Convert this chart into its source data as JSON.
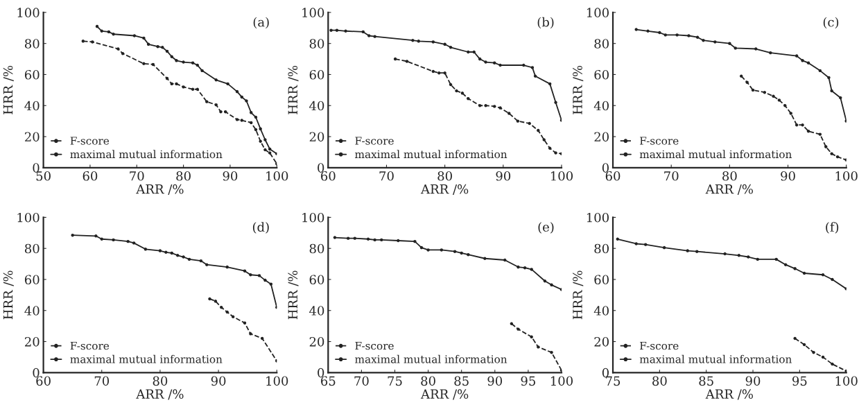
{
  "chart_data": [
    {
      "type": "line",
      "annotations": [
        "(a)"
      ],
      "xlabel": "ARR /%",
      "ylabel": "HRR /%",
      "xlim": [
        50,
        100
      ],
      "xticks": [
        50,
        60,
        70,
        80,
        90,
        100
      ],
      "ylim": [
        0,
        100
      ],
      "yticks": [
        0,
        20,
        40,
        60,
        80,
        100
      ],
      "legend": "bottom left",
      "marker": "circle",
      "grid": false,
      "series": [
        {
          "name": "F-score",
          "color": "#222222",
          "line_style": "dashed",
          "x": [
            58.5,
            60.5,
            66,
            67,
            71.5,
            73.5,
            76.5,
            77.5,
            78.5,
            80,
            82,
            83,
            85,
            87,
            88,
            89,
            91.5,
            92.5,
            94.5,
            95.5,
            96.5,
            97.5,
            98.5,
            100
          ],
          "values": [
            81.5,
            81,
            76.5,
            73.5,
            67,
            66.5,
            57.5,
            54,
            54,
            52,
            50.5,
            50.5,
            42.5,
            40.5,
            36,
            36,
            31,
            30.5,
            29,
            24.5,
            17,
            11.5,
            9.5,
            2.5
          ]
        },
        {
          "name": "maximal mutual information",
          "color": "#222222",
          "line_style": "solid",
          "x": [
            61.5,
            62.5,
            64,
            65,
            69.5,
            71.5,
            72.5,
            74.5,
            75.5,
            76.5,
            77.5,
            78.5,
            80,
            82,
            83,
            84,
            87,
            89.5,
            91.5,
            92.5,
            93.5,
            94.5,
            95.5,
            96.5,
            97.5,
            98.5,
            100
          ],
          "values": [
            91,
            88,
            87.5,
            86,
            85,
            83.5,
            79.5,
            78,
            77.5,
            75,
            71.5,
            69,
            68,
            67.5,
            66,
            62.5,
            56.5,
            54,
            49,
            45.5,
            43,
            35.5,
            32.5,
            25,
            18,
            12,
            9
          ]
        }
      ]
    },
    {
      "type": "line",
      "annotations": [
        "(b)"
      ],
      "xlabel": "ARR /%",
      "ylabel": "HRR /%",
      "xlim": [
        60,
        100
      ],
      "xticks": [
        60,
        70,
        80,
        90,
        100
      ],
      "ylim": [
        0,
        100
      ],
      "yticks": [
        0,
        20,
        40,
        60,
        80,
        100
      ],
      "legend": "bottom left",
      "marker": "circle",
      "grid": false,
      "series": [
        {
          "name": "F-score",
          "color": "#222222",
          "line_style": "dashed",
          "x": [
            71.5,
            73.5,
            78,
            79,
            80,
            81,
            82,
            83,
            84,
            86,
            87,
            88.5,
            89.5,
            91,
            92.5,
            94.5,
            96,
            97,
            98,
            99,
            100
          ],
          "values": [
            70,
            68.5,
            62,
            61,
            61,
            53.5,
            49.5,
            48,
            44.5,
            40,
            40,
            39.5,
            38.5,
            35,
            30,
            28.5,
            24,
            18,
            12.5,
            9.5,
            9
          ]
        },
        {
          "name": "maximal mutual information",
          "color": "#222222",
          "line_style": "solid",
          "x": [
            60.5,
            61.5,
            63,
            66,
            67,
            68,
            74.5,
            75.5,
            78,
            80,
            81,
            84,
            85,
            86,
            87,
            88.5,
            89.5,
            93.5,
            95,
            95.5,
            98,
            99,
            100
          ],
          "values": [
            88.5,
            88.5,
            88,
            87.5,
            85,
            84.5,
            82,
            81.5,
            81,
            79.5,
            77.5,
            74.5,
            74.5,
            70,
            68,
            67.5,
            66,
            66,
            64.5,
            59,
            54,
            42,
            30.5
          ]
        }
      ]
    },
    {
      "type": "line",
      "annotations": [
        "(c)"
      ],
      "xlabel": "ARR /%",
      "ylabel": "HRR /%",
      "xlim": [
        60,
        100
      ],
      "xticks": [
        60,
        70,
        80,
        90,
        100
      ],
      "ylim": [
        0,
        100
      ],
      "yticks": [
        0,
        20,
        40,
        60,
        80,
        100
      ],
      "legend": "bottom left",
      "marker": "circle",
      "grid": false,
      "series": [
        {
          "name": "F-score",
          "color": "#222222",
          "line_style": "dashed",
          "x": [
            82,
            83,
            84,
            86,
            87.5,
            88.5,
            89.5,
            90.5,
            91.5,
            92.5,
            93.5,
            95.5,
            96.5,
            97.5,
            98.5,
            100
          ],
          "values": [
            59,
            55,
            50,
            48.5,
            46,
            43.5,
            40,
            35,
            27.5,
            27.5,
            23.5,
            21.5,
            13.5,
            9,
            7,
            5
          ]
        },
        {
          "name": "maximal mutual information",
          "color": "#222222",
          "line_style": "solid",
          "x": [
            64,
            66,
            68,
            69,
            71,
            73,
            74.5,
            75.5,
            77.5,
            80,
            81,
            84.5,
            87,
            91.5,
            92.5,
            93.5,
            95.5,
            97,
            97.5,
            99,
            100
          ],
          "values": [
            89,
            88,
            87,
            85.5,
            85.5,
            85,
            84,
            82,
            81,
            80,
            77,
            76.5,
            74,
            72,
            69,
            67.5,
            62.5,
            58,
            49.5,
            45,
            30
          ]
        }
      ]
    },
    {
      "type": "line",
      "annotations": [
        "(d)"
      ],
      "xlabel": "ARR /%",
      "ylabel": "HRR /%",
      "xlim": [
        60,
        100
      ],
      "xticks": [
        60,
        70,
        80,
        90,
        100
      ],
      "ylim": [
        0,
        100
      ],
      "yticks": [
        0,
        20,
        40,
        60,
        80,
        100
      ],
      "legend": "bottom left",
      "marker": "circle",
      "grid": false,
      "series": [
        {
          "name": "F-score",
          "color": "#222222",
          "line_style": "dashed",
          "x": [
            88.5,
            89.5,
            90.5,
            91.5,
            92.5,
            94.5,
            95.5,
            97.5,
            100
          ],
          "values": [
            47.5,
            46,
            42,
            39,
            36,
            32,
            25,
            22,
            7.5
          ]
        },
        {
          "name": "maximal mutual information",
          "color": "#222222",
          "line_style": "solid",
          "x": [
            65,
            69,
            70,
            72,
            74.5,
            75.5,
            77.5,
            80,
            81,
            82,
            83,
            84,
            85,
            87,
            88,
            91.5,
            94.5,
            95.5,
            97,
            98,
            99,
            100
          ],
          "values": [
            88.5,
            88,
            86,
            85.5,
            84.5,
            83.5,
            79.5,
            78.5,
            77.5,
            77,
            75.5,
            74.5,
            73,
            72,
            69.5,
            68,
            65.5,
            63,
            62.5,
            59.5,
            57,
            42
          ]
        }
      ]
    },
    {
      "type": "line",
      "annotations": [
        "(e)"
      ],
      "xlabel": "ARR /%",
      "ylabel": "HRR /%",
      "xlim": [
        65,
        100
      ],
      "xticks": [
        65,
        70,
        75,
        80,
        85,
        90,
        95,
        100
      ],
      "ylim": [
        0,
        100
      ],
      "yticks": [
        0,
        20,
        40,
        60,
        80,
        100
      ],
      "legend": "bottom left",
      "marker": "circle",
      "grid": false,
      "series": [
        {
          "name": "F-score",
          "color": "#222222",
          "line_style": "dashed",
          "x": [
            92.5,
            93.5,
            95.5,
            96.5,
            98.5,
            100
          ],
          "values": [
            31.5,
            28,
            23,
            16.5,
            13,
            1.5
          ]
        },
        {
          "name": "maximal mutual information",
          "color": "#222222",
          "line_style": "solid",
          "x": [
            66,
            68,
            69,
            71,
            72,
            73,
            75.5,
            78,
            79,
            80,
            82,
            84,
            85,
            86,
            88.5,
            91.5,
            93.5,
            94.5,
            95.5,
            97.5,
            98.5,
            100
          ],
          "values": [
            87,
            86.5,
            86.5,
            86,
            85.5,
            85.5,
            85,
            84.5,
            80.5,
            79,
            79,
            78,
            77,
            76,
            73.5,
            72.5,
            68,
            67.5,
            66.5,
            59,
            56.5,
            53.5
          ]
        }
      ]
    },
    {
      "type": "line",
      "annotations": [
        "(f)"
      ],
      "xlabel": "ARR /%",
      "ylabel": "HRR /%",
      "xlim": [
        75,
        100
      ],
      "xticks": [
        75,
        80,
        85,
        90,
        95,
        100
      ],
      "ylim": [
        0,
        100
      ],
      "yticks": [
        0,
        20,
        40,
        60,
        80,
        100
      ],
      "legend": "bottom left",
      "marker": "circle",
      "grid": false,
      "series": [
        {
          "name": "F-score",
          "color": "#222222",
          "line_style": "dashed",
          "x": [
            94.5,
            95.5,
            96.5,
            97.5,
            98.5,
            100
          ],
          "values": [
            22,
            18,
            13,
            10,
            5.5,
            1
          ]
        },
        {
          "name": "maximal mutual information",
          "color": "#222222",
          "line_style": "solid",
          "x": [
            75.5,
            77.5,
            78.5,
            80.5,
            83,
            84,
            87,
            88.5,
            89.5,
            90.5,
            92.5,
            93.5,
            94.5,
            95.5,
            97.5,
            98.5,
            100
          ],
          "values": [
            86,
            83,
            82.5,
            80.5,
            78.5,
            78,
            76.5,
            75.5,
            74.5,
            73,
            73,
            69.5,
            67,
            64,
            63,
            60,
            54
          ]
        }
      ]
    }
  ]
}
